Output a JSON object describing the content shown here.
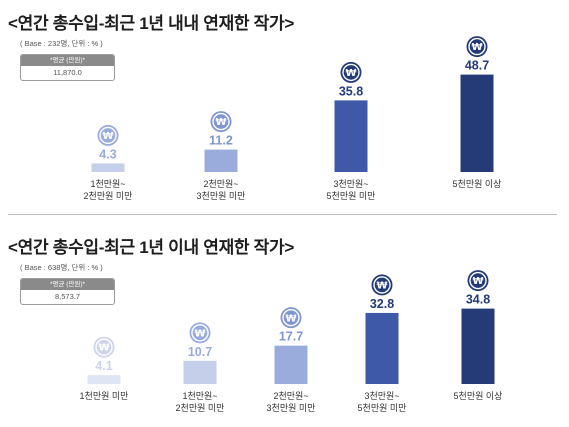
{
  "chart_data": [
    {
      "type": "bar",
      "title": "<연간 총수입-최근 1년 내내 연재한 작가>",
      "base_note": "( Base : 232명, 단위 : % )",
      "avg_label": "*평균 (만원)*",
      "avg_value": "11,870.0",
      "categories": [
        "1천만원~\n2천만원 미만",
        "2천만원~\n3천만원 미만",
        "3천만원~\n5천만원 미만",
        "5천만원 이상"
      ],
      "values": [
        4.3,
        11.2,
        35.8,
        48.7
      ],
      "value_labels": [
        "4.3",
        "11.2",
        "35.8",
        "48.7"
      ],
      "ylim": [
        0,
        50
      ],
      "colors": [
        "#c5cfea",
        "#9aacdc",
        "#3d59a8",
        "#243b78"
      ],
      "label_colors": [
        "#9aacdc",
        "#8096d0",
        "#243b78",
        "#243b78"
      ],
      "icon": "won-coin-icon"
    },
    {
      "type": "bar",
      "title": "<연간 총수입-최근 1년 이내 연재한 작가>",
      "base_note": "( Base : 638명, 단위 : % )",
      "avg_label": "*평균 (만원)*",
      "avg_value": "8,573.7",
      "categories": [
        "1천만원 미만",
        "1천만원~\n2천만원 미만",
        "2천만원~\n3천만원 미만",
        "3천만원~\n5천만원 미만",
        "5천만원 이상"
      ],
      "values": [
        4.1,
        10.7,
        17.7,
        32.8,
        34.8
      ],
      "value_labels": [
        "4.1",
        "10.7",
        "17.7",
        "32.8",
        "34.8"
      ],
      "ylim": [
        0,
        36
      ],
      "colors": [
        "#e0e5f3",
        "#c5cfea",
        "#9aacdc",
        "#3d59a8",
        "#243b78"
      ],
      "label_colors": [
        "#cdd4ea",
        "#9aacdc",
        "#8096d0",
        "#243b78",
        "#243b78"
      ],
      "icon": "won-coin-icon"
    }
  ]
}
